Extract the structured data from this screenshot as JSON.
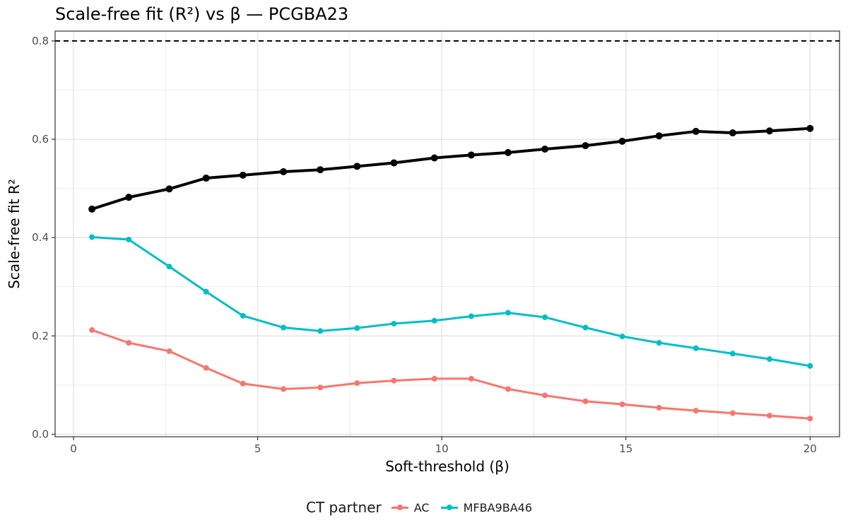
{
  "chart_data": {
    "type": "line",
    "title": "Scale-free fit (R²) vs β — PCGBA23",
    "xlabel": "Soft-threshold (β)",
    "ylabel": "Scale-free fit R²",
    "xlim": [
      -0.5,
      20.8
    ],
    "ylim": [
      -0.005,
      0.82
    ],
    "x_ticks": [
      0,
      5,
      10,
      15,
      20
    ],
    "y_ticks": [
      0.0,
      0.2,
      0.4,
      0.6,
      0.8
    ],
    "y_tick_labels": [
      "0.0",
      "0.2",
      "0.4",
      "0.6",
      "0.8"
    ],
    "x_tick_labels": [
      "0",
      "5",
      "10",
      "15",
      "20"
    ],
    "grid": true,
    "reference_line": {
      "y": 0.8,
      "style": "dashed",
      "color": "#000000"
    },
    "x": [
      0.5,
      1.5,
      2.6,
      3.6,
      4.6,
      5.7,
      6.7,
      7.7,
      8.7,
      9.8,
      10.8,
      11.8,
      12.8,
      13.9,
      14.9,
      15.9,
      16.9,
      17.9,
      18.9,
      20.0
    ],
    "series": [
      {
        "color": "#000000",
        "values": [
          0.458,
          0.482,
          0.499,
          0.521,
          0.527,
          0.534,
          0.538,
          0.545,
          0.552,
          0.562,
          0.568,
          0.573,
          0.58,
          0.587,
          0.596,
          0.607,
          0.616,
          0.613,
          0.617,
          0.622
        ]
      },
      {
        "name": "AC",
        "color": "#F8766D",
        "values": [
          0.212,
          0.186,
          0.169,
          0.135,
          0.103,
          0.092,
          0.095,
          0.104,
          0.109,
          0.113,
          0.113,
          0.092,
          0.079,
          0.067,
          0.061,
          0.054,
          0.048,
          0.043,
          0.038,
          0.032
        ]
      },
      {
        "name": "MFBA9BA46",
        "color": "#00BFC4",
        "values": [
          0.401,
          0.396,
          0.341,
          0.29,
          0.241,
          0.217,
          0.21,
          0.216,
          0.225,
          0.231,
          0.24,
          0.247,
          0.238,
          0.217,
          0.199,
          0.186,
          0.175,
          0.164,
          0.153,
          0.139
        ]
      }
    ],
    "legend": {
      "title": "CT partner",
      "position": "bottom",
      "entries": [
        {
          "label": "AC",
          "color": "#F8766D"
        },
        {
          "label": "MFBA9BA46",
          "color": "#00BFC4"
        }
      ]
    }
  }
}
